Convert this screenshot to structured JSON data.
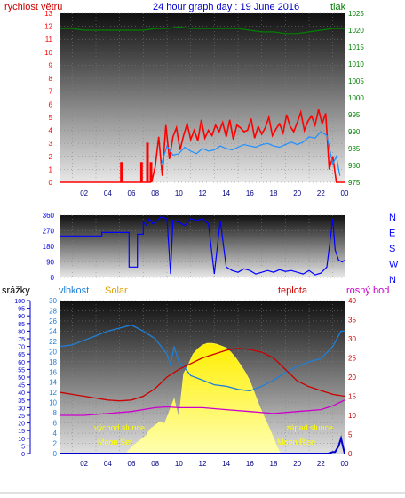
{
  "title": "24 hour graph day : 19 June 2016",
  "colors": {
    "wind": "#ff0000",
    "wind_avg": "#1e90ff",
    "pressure": "#008000",
    "direction": "#0000ff",
    "rain": "#0000cc",
    "humidity": "#1e7fd8",
    "solar": "#ffee00",
    "temperature": "#cc0000",
    "dewpoint": "#cc00cc",
    "annotation": "#ffff00"
  },
  "x_ticks": [
    "02",
    "04",
    "06",
    "08",
    "10",
    "12",
    "14",
    "16",
    "18",
    "20",
    "22",
    "00"
  ],
  "chart_data": [
    {
      "type": "line",
      "id": "wind-pressure",
      "left_label": "rychlost větru",
      "right_label": "tlak",
      "left_ticks": [
        "0",
        "1",
        "2",
        "3",
        "4",
        "5",
        "6",
        "7",
        "8",
        "9",
        "10",
        "11",
        "12",
        "13"
      ],
      "right_ticks": [
        "975",
        "980",
        "985",
        "990",
        "995",
        "1000",
        "1005",
        "1010",
        "1015",
        "1020",
        "1025"
      ],
      "ylim_left": [
        0,
        13
      ],
      "ylim_right": [
        975,
        1025
      ],
      "xlim": [
        0,
        24
      ],
      "series": [
        {
          "role": "wind_gust",
          "x": [
            0.0,
            5.1,
            5.1,
            5.2,
            5.2,
            6.8,
            6.8,
            6.9,
            6.9,
            7.3,
            7.3,
            7.4,
            7.4,
            7.6,
            7.6,
            7.7,
            7.7,
            8.0,
            8.3,
            8.6,
            8.9,
            9.2,
            9.5,
            9.8,
            10.1,
            10.4,
            10.7,
            11.0,
            11.3,
            11.6,
            11.9,
            12.2,
            12.5,
            12.8,
            13.1,
            13.4,
            13.7,
            14.0,
            14.3,
            14.6,
            14.9,
            15.2,
            15.5,
            15.8,
            16.1,
            16.4,
            16.7,
            17.0,
            17.3,
            17.6,
            17.9,
            18.2,
            18.5,
            18.8,
            19.1,
            19.4,
            19.7,
            20.0,
            20.3,
            20.6,
            20.9,
            21.2,
            21.5,
            21.8,
            22.1,
            22.4,
            22.7,
            23.0,
            23.3,
            23.6,
            24.0
          ],
          "y": [
            0,
            0,
            1.5,
            1.5,
            0,
            0,
            1.5,
            1.5,
            0,
            0,
            3,
            3,
            0,
            0,
            1.5,
            1.5,
            0,
            1.2,
            3.5,
            0.5,
            4.4,
            1.8,
            3.5,
            4.2,
            2.5,
            3.6,
            4.5,
            3.3,
            4.0,
            3.2,
            4.8,
            3.4,
            4.0,
            3.6,
            4.4,
            3.9,
            4.6,
            3.5,
            4.8,
            3.3,
            4.4,
            4.2,
            3.9,
            4.0,
            4.9,
            3.4,
            4.3,
            3.7,
            4.2,
            5.0,
            3.6,
            4.1,
            4.5,
            3.8,
            5.2,
            4.3,
            3.9,
            4.6,
            5.4,
            4.0,
            4.7,
            5.1,
            4.4,
            5.6,
            4.5,
            5.3,
            1.0,
            2.0,
            0.0,
            0.0,
            0.0
          ]
        },
        {
          "role": "wind_avg",
          "x": [
            8.5,
            9.0,
            9.5,
            10.0,
            10.5,
            11.0,
            11.5,
            12.0,
            12.5,
            13.0,
            13.5,
            14.0,
            14.5,
            15.0,
            15.5,
            16.0,
            16.5,
            17.0,
            17.5,
            18.0,
            18.5,
            19.0,
            19.5,
            20.0,
            20.5,
            21.0,
            21.5,
            22.0,
            22.5,
            23.0,
            23.3,
            23.6
          ],
          "y": [
            1.3,
            2.8,
            2.1,
            2.2,
            2.7,
            2.4,
            2.2,
            2.6,
            2.4,
            2.5,
            2.8,
            2.6,
            2.5,
            2.7,
            2.9,
            2.8,
            2.7,
            2.9,
            3.0,
            2.8,
            2.7,
            2.9,
            3.1,
            2.9,
            3.1,
            3.5,
            3.4,
            3.9,
            3.6,
            1.4,
            2.0,
            0.5
          ]
        },
        {
          "role": "pressure",
          "x": [
            0,
            1,
            2,
            3,
            4,
            5,
            6,
            7,
            8,
            9,
            10,
            11,
            12,
            13,
            14,
            15,
            16,
            17,
            18,
            19,
            20,
            21,
            22,
            23,
            24
          ],
          "y": [
            1020.5,
            1020.5,
            1020.0,
            1020.0,
            1020.0,
            1020.0,
            1020.0,
            1020.0,
            1020.5,
            1020.5,
            1021.0,
            1020.5,
            1020.5,
            1020.5,
            1020.5,
            1020.5,
            1020.0,
            1019.5,
            1019.5,
            1019.0,
            1019.0,
            1019.5,
            1020.0,
            1020.5,
            1020.5
          ]
        }
      ]
    },
    {
      "type": "line",
      "id": "wind-direction",
      "left_ticks": [
        "0",
        "90",
        "180",
        "270",
        "360"
      ],
      "right_ticks": [
        "N",
        "W",
        "S",
        "E",
        "N"
      ],
      "ylim": [
        0,
        360
      ],
      "xlim": [
        0,
        24
      ],
      "series": [
        {
          "role": "direction",
          "x": [
            0.0,
            3.5,
            3.5,
            5.8,
            5.8,
            6.5,
            6.5,
            7.0,
            7.0,
            7.3,
            7.5,
            7.8,
            8.0,
            8.5,
            9.0,
            9.3,
            9.5,
            10.0,
            10.5,
            11.0,
            11.5,
            12.0,
            12.5,
            13.0,
            13.5,
            14.0,
            14.5,
            15.0,
            15.5,
            16.0,
            16.5,
            17.0,
            17.5,
            18.0,
            18.5,
            19.0,
            19.5,
            20.0,
            20.5,
            21.0,
            21.5,
            22.0,
            22.5,
            23.0,
            23.2,
            23.5,
            23.8,
            24.0
          ],
          "y": [
            240,
            240,
            260,
            260,
            60,
            60,
            250,
            250,
            320,
            300,
            340,
            310,
            320,
            350,
            340,
            20,
            330,
            320,
            300,
            340,
            330,
            340,
            310,
            20,
            330,
            60,
            40,
            30,
            50,
            40,
            20,
            30,
            40,
            30,
            45,
            35,
            40,
            30,
            20,
            40,
            15,
            25,
            60,
            340,
            160,
            100,
            90,
            100
          ]
        }
      ]
    },
    {
      "type": "line",
      "id": "humidity-temp-solar",
      "left_outer_label": "srážky",
      "left_label": "vlhkost",
      "solar_label": "Solar",
      "temp_label": "teplota",
      "dew_label": "rosný bod",
      "rain_ticks": [
        "0",
        "5",
        "10",
        "15",
        "20",
        "25",
        "30",
        "35",
        "40",
        "45",
        "50",
        "55",
        "60",
        "65",
        "70",
        "75",
        "80",
        "85",
        "90",
        "95",
        "100"
      ],
      "hum_ticks": [
        "0",
        "2",
        "4",
        "6",
        "8",
        "10",
        "12",
        "14",
        "16",
        "18",
        "20",
        "22",
        "24",
        "26",
        "28",
        "30"
      ],
      "temp_ticks": [
        "0",
        "5",
        "10",
        "15",
        "20",
        "25",
        "30",
        "35",
        "40"
      ],
      "ylim_humidity": [
        0,
        100
      ],
      "ylim_temperature": [
        0,
        40
      ],
      "xlim": [
        0,
        24
      ],
      "annotations": {
        "sunrise": "východ slunce",
        "sunset": "západ slunce",
        "moonrise": "Moon Rise",
        "moonset": "Moon Set"
      },
      "series": [
        {
          "role": "humidity",
          "x": [
            0,
            1,
            2,
            3,
            4,
            5,
            6,
            6.5,
            7,
            8,
            9,
            9.3,
            9.6,
            10,
            10.5,
            11,
            12,
            13,
            14,
            15,
            16,
            17,
            18,
            19,
            20,
            21,
            22,
            23,
            23.7,
            24
          ],
          "y": [
            70,
            71,
            74,
            77,
            80,
            82,
            84,
            82,
            80,
            75,
            65,
            58,
            70,
            60,
            56,
            51,
            48,
            45,
            44,
            42,
            41,
            44,
            48,
            53,
            57,
            60,
            62,
            70,
            80,
            80
          ]
        },
        {
          "role": "temperature",
          "x": [
            0,
            1,
            2,
            3,
            4,
            5,
            6,
            7,
            8,
            9,
            10,
            11,
            12,
            13,
            14,
            15,
            16,
            17,
            18,
            19,
            20,
            21,
            22,
            23,
            24
          ],
          "y": [
            16,
            15.5,
            15,
            14.5,
            14,
            13.8,
            14,
            15,
            17,
            20,
            22,
            23.5,
            25,
            26,
            27,
            27.5,
            27.2,
            26.5,
            25,
            22,
            19,
            17.5,
            16.5,
            15.5,
            15
          ]
        },
        {
          "role": "dewpoint",
          "x": [
            0,
            2,
            4,
            6,
            8,
            9,
            10,
            12,
            14,
            16,
            18,
            20,
            22,
            23,
            24
          ],
          "y": [
            10,
            10,
            10.5,
            11,
            12,
            12.2,
            12,
            12,
            11.5,
            11,
            10.5,
            11,
            11.5,
            12.5,
            14
          ]
        },
        {
          "role": "solar",
          "x": [
            5.5,
            6.2,
            6.8,
            7.2,
            7.6,
            8.0,
            8.4,
            8.8,
            9.2,
            9.6,
            10.0,
            10.4,
            10.8,
            11.2,
            11.6,
            12.0,
            12.4,
            12.8,
            13.2,
            13.6,
            14.0,
            14.4,
            14.8,
            15.2,
            15.6,
            16.0,
            16.4,
            16.8,
            17.2,
            17.6,
            18.0,
            18.3,
            18.6
          ],
          "y": [
            0,
            10,
            16,
            20,
            28,
            32,
            36,
            34,
            48,
            62,
            40,
            90,
            100,
            112,
            118,
            122,
            124,
            124,
            123,
            121,
            119,
            114,
            108,
            100,
            92,
            82,
            68,
            54,
            42,
            30,
            18,
            8,
            0
          ]
        },
        {
          "role": "rain",
          "x": [
            0,
            22.3,
            22.6,
            23.0,
            23.2,
            23.5,
            23.7,
            24
          ],
          "y": [
            0,
            0,
            0,
            1,
            1,
            5,
            10,
            0
          ]
        }
      ]
    }
  ]
}
